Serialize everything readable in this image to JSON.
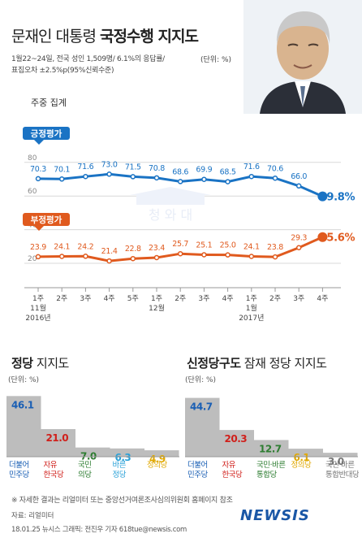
{
  "header": {
    "title_light": "문재인 대통령",
    "title_bold": "국정수행 지지도",
    "survey_line1": "1월22~24일, 전국 성인 1,509명/ 6.1%의 응답률/",
    "survey_line2": "표집오차 ±2.5%p(95%신뢰수준)",
    "unit": "(단위: %)",
    "weekly_label": "주중 집계"
  },
  "colors": {
    "positive": "#1a73c4",
    "negative": "#e05a1e",
    "bar_gray": "#bdbdbd",
    "party_minjoo": "#1a5fb4",
    "party_jayu": "#d0201b",
    "party_gukmin": "#2e7d32",
    "party_bareun": "#2aa1d8",
    "party_jeongui": "#e0a800",
    "party_tonghap": "#777777"
  },
  "chart_data": [
    {
      "type": "line",
      "x": [
        "1주",
        "2주",
        "3주",
        "4주",
        "5주",
        "1주",
        "2주",
        "3주",
        "4주",
        "1주",
        "2주",
        "3주",
        "4주"
      ],
      "x_groups": [
        "11월",
        "2016년",
        "12월",
        "1월",
        "2017년"
      ],
      "series": [
        {
          "name": "긍정평가",
          "values": [
            70.3,
            70.1,
            71.6,
            73.0,
            71.5,
            70.8,
            68.6,
            69.9,
            68.5,
            71.6,
            70.6,
            66.0,
            59.8
          ],
          "labels": [
            "70.3",
            "70.1",
            "71.6",
            "73.0",
            "71.5",
            "70.8",
            "68.6",
            "69.9",
            "68.5",
            "71.6",
            "70.6",
            "66.0",
            "59.8%"
          ]
        },
        {
          "name": "부정평가",
          "values": [
            23.9,
            24.1,
            24.2,
            21.4,
            22.8,
            23.4,
            25.7,
            25.1,
            25.0,
            24.1,
            23.8,
            29.3,
            35.6
          ],
          "labels": [
            "23.9",
            "24.1",
            "24.2",
            "21.4",
            "22.8",
            "23.4",
            "25.7",
            "25.1",
            "25.0",
            "24.1",
            "23.8",
            "29.3",
            "35.6%"
          ]
        }
      ],
      "y_ticks": [
        "80",
        "60",
        "40",
        "20"
      ],
      "ylim": [
        15,
        85
      ]
    },
    {
      "type": "bar",
      "title_bold": "정당",
      "title_light": "지지도",
      "unit": "(단위: %)",
      "categories": [
        [
          "더불어",
          "민주당"
        ],
        [
          "자유",
          "한국당"
        ],
        [
          "국민",
          "의당"
        ],
        [
          "바른",
          "정당"
        ],
        [
          "정의당"
        ]
      ],
      "values": [
        46.1,
        21.0,
        7.0,
        6.3,
        4.9
      ],
      "labels": [
        "46.1",
        "21.0",
        "7.0",
        "6.3",
        "4.9"
      ]
    },
    {
      "type": "bar",
      "title_bold": "신정당구도",
      "title_light": "잠재 정당 지지도",
      "unit": "(단위: %)",
      "categories": [
        [
          "더불어",
          "민주당"
        ],
        [
          "자유",
          "한국당"
        ],
        [
          "국민·바른",
          "통합당"
        ],
        [
          "정의당"
        ],
        [
          "국민·바른",
          "통합반대당"
        ]
      ],
      "values": [
        44.7,
        20.3,
        12.7,
        6.1,
        3.0
      ],
      "labels": [
        "44.7",
        "20.3",
        "12.7",
        "6.1",
        "3.0"
      ]
    }
  ],
  "footer": {
    "note": "※ 자세한 결과는 리얼미터 또는 중앙선거여론조사심의위원회 홈페이지 참조",
    "source": "자료: 리얼미터",
    "credit": "18.01.25    뉴시스 그래픽: 전진우 기자  618tue@newsis.com",
    "logo": "NEWSIS"
  }
}
